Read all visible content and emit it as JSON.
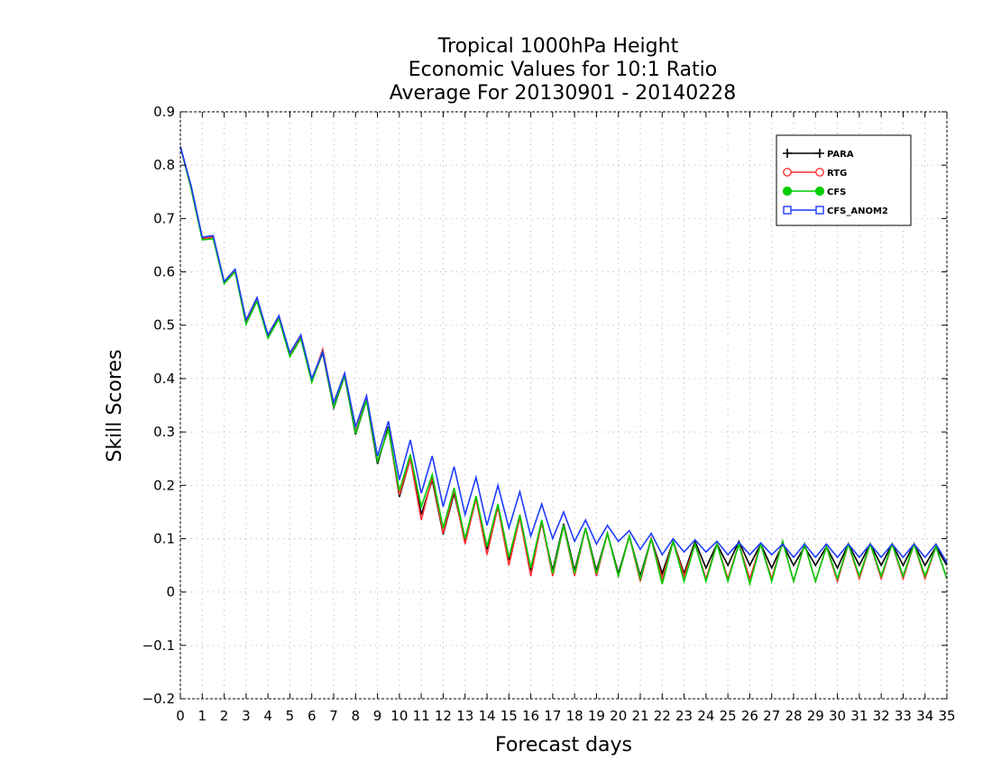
{
  "chart_data": {
    "type": "line",
    "title_lines": [
      "Tropical 1000hPa Height",
      "Economic Values for 10:1 Ratio",
      "Average For 20130901 - 20140228"
    ],
    "xlabel": "Forecast days",
    "ylabel": "Skill Scores",
    "xlim": [
      0,
      35
    ],
    "ylim": [
      -0.2,
      0.9
    ],
    "x_ticks": [
      0,
      1,
      2,
      3,
      4,
      5,
      6,
      7,
      8,
      9,
      10,
      11,
      12,
      13,
      14,
      15,
      16,
      17,
      18,
      19,
      20,
      21,
      22,
      23,
      24,
      25,
      26,
      27,
      28,
      29,
      30,
      31,
      32,
      33,
      34,
      35
    ],
    "x_tick_labels": [
      "0",
      "1",
      "2",
      "3",
      "4",
      "5",
      "6",
      "7",
      "8",
      "9",
      "10",
      "11",
      "12",
      "13",
      "14",
      "15",
      "16",
      "17",
      "18",
      "19",
      "20",
      "21",
      "22",
      "23",
      "24",
      "25",
      "26",
      "27",
      "28",
      "29",
      "30",
      "31",
      "32",
      "33",
      "34",
      "35"
    ],
    "y_ticks": [
      -0.2,
      -0.1,
      0,
      0.1,
      0.2,
      0.3,
      0.4,
      0.5,
      0.6,
      0.7,
      0.8,
      0.9
    ],
    "y_tick_labels": [
      "−0.2",
      "−0.1",
      "0",
      "0.1",
      "0.2",
      "0.3",
      "0.4",
      "0.5",
      "0.6",
      "0.7",
      "0.8",
      "0.9"
    ],
    "grid": true,
    "legend_position": "top-right",
    "x": [
      0,
      0.5,
      1,
      1.5,
      2,
      2.5,
      3,
      3.5,
      4,
      4.5,
      5,
      5.5,
      6,
      6.5,
      7,
      7.5,
      8,
      8.5,
      9,
      9.5,
      10,
      10.5,
      11,
      11.5,
      12,
      12.5,
      13,
      13.5,
      14,
      14.5,
      15,
      15.5,
      16,
      16.5,
      17,
      17.5,
      18,
      18.5,
      19,
      19.5,
      20,
      20.5,
      21,
      21.5,
      22,
      22.5,
      23,
      23.5,
      24,
      24.5,
      25,
      25.5,
      26,
      26.5,
      27,
      27.5,
      28,
      28.5,
      29,
      29.5,
      30,
      30.5,
      31,
      31.5,
      32,
      32.5,
      33,
      33.5,
      34,
      34.5,
      35
    ],
    "series": [
      {
        "name": "PARA",
        "color": "#000000",
        "marker": "plus",
        "values": [
          0.835,
          0.755,
          0.662,
          0.665,
          0.58,
          0.603,
          0.505,
          0.548,
          0.478,
          0.515,
          0.443,
          0.478,
          0.395,
          0.448,
          0.345,
          0.405,
          0.295,
          0.36,
          0.24,
          0.31,
          0.178,
          0.25,
          0.145,
          0.21,
          0.108,
          0.185,
          0.095,
          0.175,
          0.08,
          0.16,
          0.06,
          0.14,
          0.04,
          0.13,
          0.04,
          0.128,
          0.04,
          0.12,
          0.04,
          0.11,
          0.035,
          0.105,
          0.03,
          0.1,
          0.035,
          0.095,
          0.035,
          0.095,
          0.045,
          0.09,
          0.05,
          0.095,
          0.05,
          0.09,
          0.045,
          0.09,
          0.05,
          0.085,
          0.05,
          0.085,
          0.045,
          0.09,
          0.05,
          0.09,
          0.05,
          0.09,
          0.05,
          0.09,
          0.05,
          0.085,
          0.05
        ]
      },
      {
        "name": "RTG",
        "color": "#ff3030",
        "marker": "open-circle",
        "values": [
          0.835,
          0.755,
          0.662,
          0.665,
          0.58,
          0.603,
          0.505,
          0.548,
          0.478,
          0.515,
          0.443,
          0.478,
          0.395,
          0.455,
          0.35,
          0.41,
          0.3,
          0.362,
          0.245,
          0.305,
          0.182,
          0.25,
          0.135,
          0.215,
          0.11,
          0.19,
          0.09,
          0.175,
          0.07,
          0.16,
          0.05,
          0.14,
          0.03,
          0.132,
          0.03,
          0.125,
          0.03,
          0.12,
          0.03,
          0.11,
          0.03,
          0.105,
          0.02,
          0.1,
          0.025,
          0.095,
          0.03,
          0.09,
          0.025,
          0.09,
          0.025,
          0.09,
          0.025,
          0.09,
          0.025,
          0.095,
          0.02,
          0.09,
          0.02,
          0.085,
          0.02,
          0.09,
          0.025,
          0.09,
          0.025,
          0.09,
          0.025,
          0.09,
          0.025,
          0.085,
          0.025
        ]
      },
      {
        "name": "CFS",
        "color": "#00cc00",
        "marker": "filled-circle",
        "values": [
          0.835,
          0.755,
          0.66,
          0.662,
          0.578,
          0.6,
          0.502,
          0.545,
          0.476,
          0.512,
          0.441,
          0.475,
          0.393,
          0.45,
          0.347,
          0.406,
          0.297,
          0.36,
          0.245,
          0.305,
          0.19,
          0.258,
          0.16,
          0.22,
          0.12,
          0.195,
          0.1,
          0.18,
          0.085,
          0.165,
          0.065,
          0.145,
          0.045,
          0.135,
          0.035,
          0.125,
          0.035,
          0.12,
          0.035,
          0.11,
          0.03,
          0.105,
          0.025,
          0.1,
          0.015,
          0.095,
          0.02,
          0.09,
          0.02,
          0.09,
          0.02,
          0.09,
          0.015,
          0.09,
          0.02,
          0.095,
          0.02,
          0.09,
          0.02,
          0.085,
          0.025,
          0.09,
          0.03,
          0.09,
          0.03,
          0.09,
          0.03,
          0.09,
          0.03,
          0.085,
          0.025
        ]
      },
      {
        "name": "CFS_ANOM2",
        "color": "#1e3cff",
        "marker": "open-square",
        "values": [
          0.835,
          0.76,
          0.665,
          0.668,
          0.582,
          0.605,
          0.51,
          0.552,
          0.482,
          0.518,
          0.448,
          0.482,
          0.4,
          0.45,
          0.355,
          0.41,
          0.31,
          0.368,
          0.255,
          0.32,
          0.21,
          0.285,
          0.185,
          0.255,
          0.16,
          0.235,
          0.145,
          0.215,
          0.125,
          0.2,
          0.12,
          0.188,
          0.105,
          0.165,
          0.1,
          0.15,
          0.095,
          0.135,
          0.09,
          0.125,
          0.095,
          0.115,
          0.08,
          0.11,
          0.07,
          0.1,
          0.075,
          0.098,
          0.075,
          0.095,
          0.07,
          0.093,
          0.07,
          0.092,
          0.07,
          0.09,
          0.065,
          0.09,
          0.065,
          0.09,
          0.065,
          0.09,
          0.065,
          0.09,
          0.065,
          0.09,
          0.065,
          0.09,
          0.065,
          0.09,
          0.055
        ]
      }
    ]
  }
}
